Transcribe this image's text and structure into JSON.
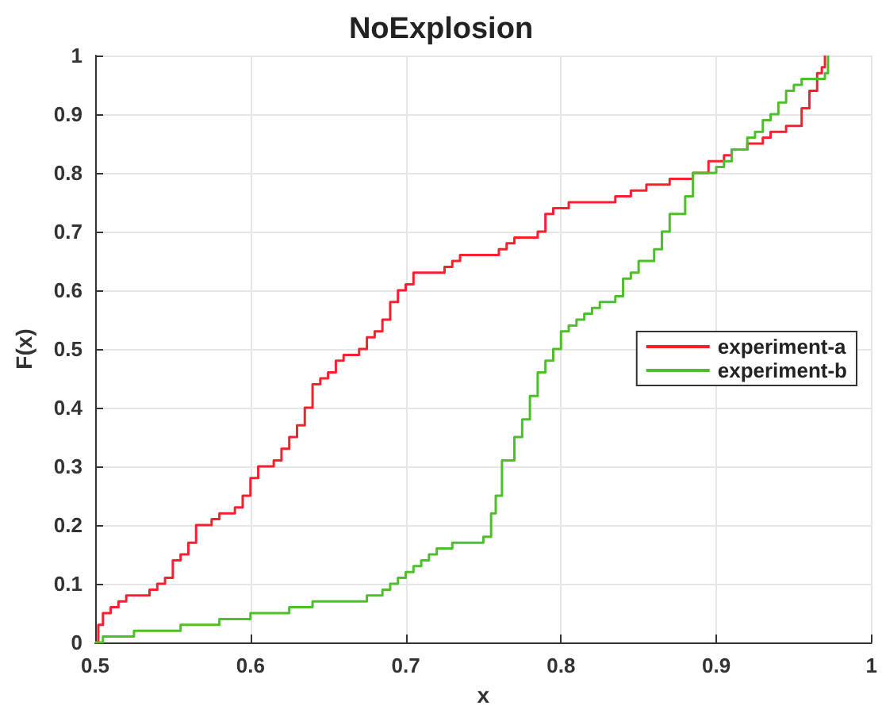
{
  "chart_data": {
    "type": "step",
    "title": "NoExplosion",
    "xlabel": "x",
    "ylabel": "F(x)",
    "xlim": [
      0.5,
      1
    ],
    "xticks": [
      0.5,
      0.6,
      0.7,
      0.8,
      0.9,
      1
    ],
    "ylim": [
      0,
      1
    ],
    "yticks": [
      0,
      0.1,
      0.2,
      0.3,
      0.4,
      0.5,
      0.6,
      0.7,
      0.8,
      0.9,
      1
    ],
    "grid": true,
    "legend": "right",
    "marker": "none",
    "line_style": "solid",
    "series": [
      {
        "name": "experiment-a",
        "color": "#ff1e2d",
        "x": [
          0.5,
          0.502,
          0.505,
          0.51,
          0.515,
          0.52,
          0.535,
          0.54,
          0.545,
          0.55,
          0.555,
          0.56,
          0.565,
          0.575,
          0.58,
          0.59,
          0.595,
          0.6,
          0.605,
          0.615,
          0.62,
          0.625,
          0.63,
          0.635,
          0.64,
          0.645,
          0.65,
          0.655,
          0.66,
          0.67,
          0.675,
          0.68,
          0.685,
          0.69,
          0.695,
          0.7,
          0.705,
          0.725,
          0.73,
          0.735,
          0.76,
          0.765,
          0.77,
          0.785,
          0.79,
          0.795,
          0.805,
          0.835,
          0.845,
          0.855,
          0.87,
          0.885,
          0.895,
          0.905,
          0.91,
          0.92,
          0.93,
          0.935,
          0.945,
          0.955,
          0.96,
          0.965,
          0.968,
          0.97
        ],
        "values": [
          0,
          0.03,
          0.05,
          0.06,
          0.07,
          0.08,
          0.09,
          0.1,
          0.11,
          0.14,
          0.15,
          0.17,
          0.2,
          0.21,
          0.22,
          0.23,
          0.25,
          0.28,
          0.3,
          0.31,
          0.33,
          0.35,
          0.37,
          0.4,
          0.44,
          0.45,
          0.46,
          0.48,
          0.49,
          0.5,
          0.52,
          0.53,
          0.55,
          0.58,
          0.6,
          0.61,
          0.63,
          0.64,
          0.65,
          0.66,
          0.67,
          0.68,
          0.69,
          0.7,
          0.73,
          0.74,
          0.75,
          0.76,
          0.77,
          0.78,
          0.79,
          0.8,
          0.82,
          0.83,
          0.84,
          0.85,
          0.86,
          0.87,
          0.88,
          0.91,
          0.94,
          0.97,
          0.98,
          1
        ]
      },
      {
        "name": "experiment-b",
        "color": "#4cbf2a",
        "x": [
          0.5,
          0.505,
          0.525,
          0.555,
          0.58,
          0.6,
          0.625,
          0.64,
          0.675,
          0.685,
          0.69,
          0.695,
          0.7,
          0.705,
          0.71,
          0.715,
          0.72,
          0.73,
          0.75,
          0.755,
          0.758,
          0.762,
          0.77,
          0.775,
          0.78,
          0.785,
          0.79,
          0.795,
          0.8,
          0.805,
          0.81,
          0.815,
          0.82,
          0.825,
          0.835,
          0.84,
          0.845,
          0.85,
          0.86,
          0.865,
          0.87,
          0.88,
          0.885,
          0.9,
          0.905,
          0.91,
          0.92,
          0.925,
          0.93,
          0.935,
          0.94,
          0.945,
          0.95,
          0.955,
          0.97,
          0.972
        ],
        "values": [
          0,
          0.01,
          0.02,
          0.03,
          0.04,
          0.05,
          0.06,
          0.07,
          0.08,
          0.09,
          0.1,
          0.11,
          0.12,
          0.13,
          0.14,
          0.15,
          0.16,
          0.17,
          0.18,
          0.22,
          0.25,
          0.31,
          0.35,
          0.38,
          0.42,
          0.46,
          0.48,
          0.5,
          0.53,
          0.54,
          0.55,
          0.56,
          0.57,
          0.58,
          0.59,
          0.62,
          0.63,
          0.65,
          0.67,
          0.7,
          0.73,
          0.76,
          0.8,
          0.81,
          0.82,
          0.84,
          0.86,
          0.87,
          0.89,
          0.9,
          0.92,
          0.94,
          0.95,
          0.96,
          0.97,
          1
        ]
      }
    ]
  }
}
